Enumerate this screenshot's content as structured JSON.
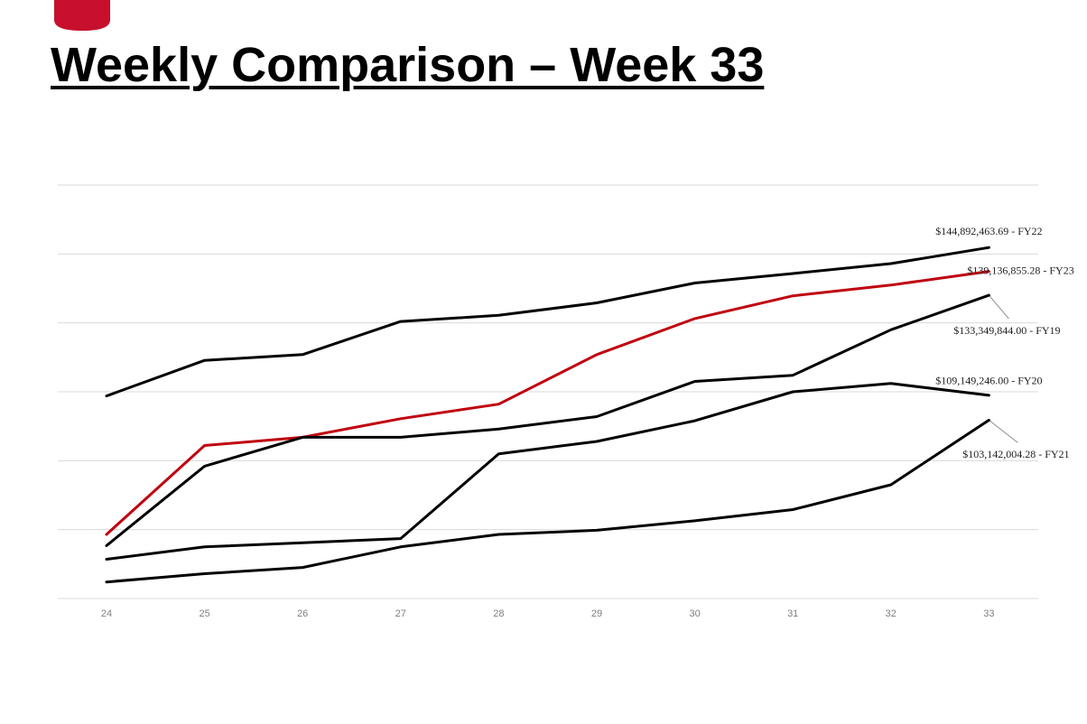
{
  "title": "Weekly Comparison – Week 33",
  "colors": {
    "accent": "#c0000f",
    "series_default": "#000000",
    "gridline": "#d9d9d9",
    "axis_text": "#7f7f7f",
    "logo": "#c8102e"
  },
  "logo": {
    "icon": "shield-logo-icon"
  },
  "chart_data": {
    "type": "line",
    "categories": [
      "24",
      "25",
      "26",
      "27",
      "28",
      "29",
      "30",
      "31",
      "32",
      "33"
    ],
    "ylim": [
      60000000,
      160000000
    ],
    "grid": true,
    "legend": "none",
    "series": [
      {
        "name": "FY22",
        "color": "#000000",
        "values": [
          109000000,
          117600000,
          119000000,
          127000000,
          128500000,
          131500000,
          136300000,
          138600000,
          141000000,
          144892463.69
        ],
        "label": "$144,892,463.69 - FY22"
      },
      {
        "name": "FY23",
        "color": "#c0000f",
        "values": [
          75500000,
          97000000,
          99000000,
          103500000,
          107000000,
          119000000,
          127700000,
          133200000,
          135800000,
          139136855.28
        ],
        "label": "$139,136,855.28 - FY23"
      },
      {
        "name": "FY19",
        "color": "#000000",
        "values": [
          72800000,
          92000000,
          99000000,
          99000000,
          101000000,
          104000000,
          112500000,
          114000000,
          125000000,
          133349844.0
        ],
        "label": "$133,349,844.00 - FY19"
      },
      {
        "name": "FY20",
        "color": "#000000",
        "values": [
          69500000,
          72500000,
          73500000,
          74500000,
          95000000,
          98000000,
          103000000,
          110000000,
          112000000,
          109149246.0
        ],
        "label": "$109,149,246.00 - FY20"
      },
      {
        "name": "FY21",
        "color": "#000000",
        "values": [
          64000000,
          66000000,
          67500000,
          72500000,
          75500000,
          76500000,
          78800000,
          81500000,
          87500000,
          103142004.28
        ],
        "label": "$103,142,004.28 - FY21"
      }
    ]
  }
}
